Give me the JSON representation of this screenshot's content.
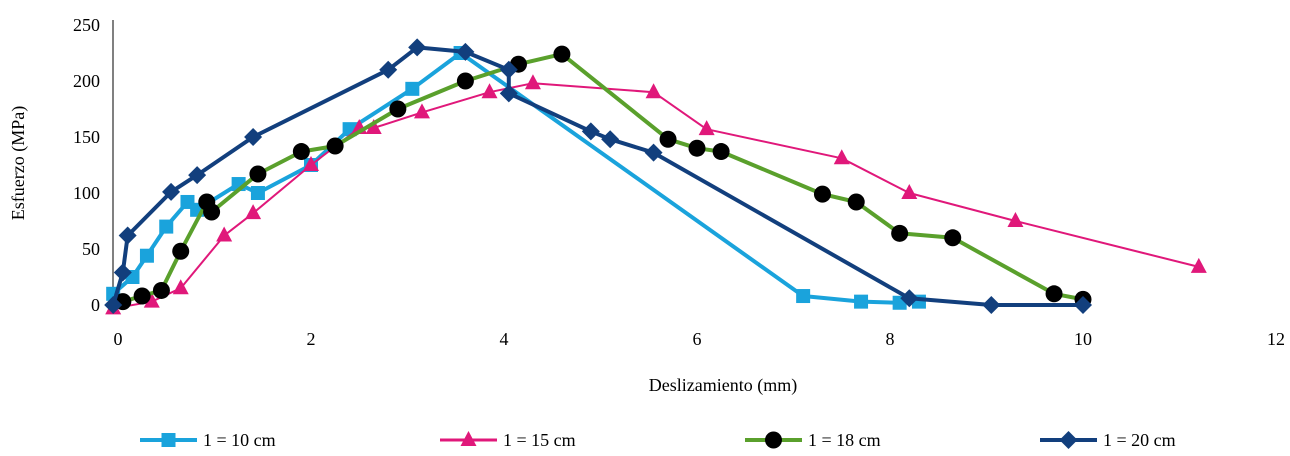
{
  "chart_data": {
    "type": "line",
    "title": "",
    "xlabel": "Deslizamiento (mm)",
    "ylabel": "Esfuerzo (MPa)",
    "xlim": [
      0,
      12
    ],
    "ylim": [
      0,
      250
    ],
    "xticks": [
      0,
      2,
      4,
      6,
      8,
      10,
      12
    ],
    "yticks": [
      0,
      50,
      100,
      150,
      200,
      250
    ],
    "grid": false,
    "legend_position": "bottom",
    "series": [
      {
        "name": "1 = 10 cm",
        "color": "#1aa3dc",
        "marker": "square",
        "points": [
          [
            -0.05,
            10
          ],
          [
            0.15,
            25
          ],
          [
            0.3,
            44
          ],
          [
            0.5,
            70
          ],
          [
            0.72,
            92
          ],
          [
            0.82,
            85
          ],
          [
            1.25,
            108
          ],
          [
            1.45,
            100
          ],
          [
            2.0,
            125
          ],
          [
            2.4,
            157
          ],
          [
            3.05,
            193
          ],
          [
            3.55,
            225
          ],
          [
            7.1,
            8
          ],
          [
            7.7,
            3
          ],
          [
            8.1,
            2
          ],
          [
            8.3,
            3
          ]
        ]
      },
      {
        "name": "1 = 15 cm",
        "color": "#e0187a",
        "marker": "triangle",
        "points": [
          [
            -0.05,
            -3
          ],
          [
            0.35,
            3
          ],
          [
            0.65,
            15
          ],
          [
            1.1,
            62
          ],
          [
            1.4,
            82
          ],
          [
            2.0,
            125
          ],
          [
            2.5,
            158
          ],
          [
            2.65,
            158
          ],
          [
            3.15,
            172
          ],
          [
            3.85,
            190
          ],
          [
            4.3,
            198
          ],
          [
            5.55,
            190
          ],
          [
            6.1,
            157
          ],
          [
            7.5,
            131
          ],
          [
            8.2,
            100
          ],
          [
            9.3,
            75
          ],
          [
            11.2,
            34
          ]
        ]
      },
      {
        "name": "1 = 18 cm",
        "color": "#5aa02c",
        "marker": "circle",
        "points": [
          [
            0.05,
            3
          ],
          [
            0.25,
            8
          ],
          [
            0.45,
            13
          ],
          [
            0.65,
            48
          ],
          [
            0.92,
            92
          ],
          [
            0.97,
            83
          ],
          [
            1.45,
            117
          ],
          [
            1.9,
            137
          ],
          [
            2.25,
            142
          ],
          [
            2.9,
            175
          ],
          [
            3.6,
            200
          ],
          [
            4.15,
            215
          ],
          [
            4.6,
            224
          ],
          [
            5.7,
            148
          ],
          [
            6.0,
            140
          ],
          [
            6.25,
            137
          ],
          [
            7.3,
            99
          ],
          [
            7.65,
            92
          ],
          [
            8.1,
            64
          ],
          [
            8.65,
            60
          ],
          [
            9.7,
            10
          ],
          [
            10.0,
            5
          ]
        ]
      },
      {
        "name": "1 = 20 cm",
        "color": "#123f7d",
        "marker": "diamond",
        "points": [
          [
            -0.05,
            0
          ],
          [
            0.05,
            29
          ],
          [
            0.1,
            62
          ],
          [
            0.55,
            101
          ],
          [
            0.82,
            116
          ],
          [
            1.4,
            150
          ],
          [
            2.8,
            210
          ],
          [
            3.1,
            230
          ],
          [
            3.6,
            226
          ],
          [
            4.05,
            210
          ],
          [
            4.05,
            189
          ],
          [
            4.9,
            155
          ],
          [
            5.1,
            148
          ],
          [
            5.55,
            136
          ],
          [
            8.2,
            6
          ],
          [
            9.05,
            0
          ],
          [
            10.0,
            0
          ]
        ]
      }
    ]
  }
}
